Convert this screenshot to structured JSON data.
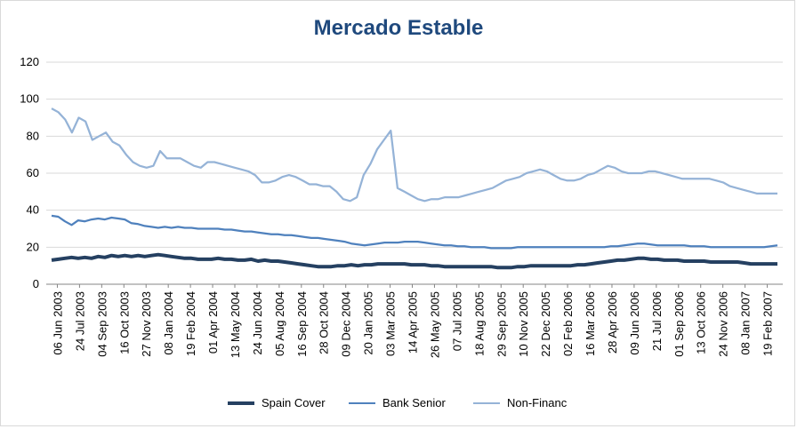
{
  "chart_data": {
    "type": "line",
    "title": "Mercado Estable",
    "xlabel": "",
    "ylabel": "",
    "ylim": [
      0,
      120
    ],
    "yticks": [
      0,
      20,
      40,
      60,
      80,
      100,
      120
    ],
    "grid": true,
    "legend": "bottom",
    "xtick_labels": [
      "06 Jun 2003",
      "24 Jul 2003",
      "04 Sep 2003",
      "16 Oct 2003",
      "27 Nov 2003",
      "08 Jan 2004",
      "19 Feb 2004",
      "01 Apr 2004",
      "13 May 2004",
      "24 Jun 2004",
      "05 Aug 2004",
      "16 Sep 2004",
      "28 Oct 2004",
      "09 Dec 2004",
      "20 Jan 2005",
      "03 Mar 2005",
      "14 Apr 2005",
      "26 May 2005",
      "07 Jul 2005",
      "18 Aug 2005",
      "29 Sep 2005",
      "10 Nov 2005",
      "22 Dec 2005",
      "02 Feb 2006",
      "16 Mar 2006",
      "28 Apr 2006",
      "09 Jun 2006",
      "21 Jul 2006",
      "01 Sep 2006",
      "13 Oct 2006",
      "24 Nov 2006",
      "08 Jan 2007",
      "19 Feb 2007"
    ],
    "series": [
      {
        "name": "Spain Cover",
        "color": "#254061",
        "values": [
          13,
          13.5,
          14,
          14.5,
          14,
          14.5,
          14,
          15,
          14.5,
          15.5,
          15,
          15.5,
          15,
          15.5,
          15,
          15.5,
          16,
          15.5,
          15,
          14.5,
          14,
          14,
          13.5,
          13.5,
          13.5,
          14,
          13.5,
          13.5,
          13,
          13,
          13.5,
          12.5,
          13,
          12.5,
          12.5,
          12,
          11.5,
          11,
          10.5,
          10,
          9.5,
          9.5,
          9.5,
          10,
          10,
          10.5,
          10,
          10.5,
          10.5,
          11,
          11,
          11,
          11,
          11,
          10.5,
          10.5,
          10.5,
          10,
          10,
          9.5,
          9.5,
          9.5,
          9.5,
          9.5,
          9.5,
          9.5,
          9.5,
          9,
          9,
          9,
          9.5,
          9.5,
          10,
          10,
          10,
          10,
          10,
          10,
          10,
          10.5,
          10.5,
          11,
          11.5,
          12,
          12.5,
          13,
          13,
          13.5,
          14,
          14,
          13.5,
          13.5,
          13,
          13,
          13,
          12.5,
          12.5,
          12.5,
          12.5,
          12,
          12,
          12,
          12,
          12,
          11.5,
          11,
          11,
          11,
          11,
          11
        ]
      },
      {
        "name": "Bank Senior",
        "color": "#4f81bd",
        "values": [
          37,
          36.5,
          34,
          32,
          34.5,
          34,
          35,
          35.5,
          35,
          36,
          35.5,
          35,
          33,
          32.5,
          31.5,
          31,
          30.5,
          31,
          30.5,
          31,
          30.5,
          30.5,
          30,
          30,
          30,
          30,
          29.5,
          29.5,
          29,
          28.5,
          28.5,
          28,
          27.5,
          27,
          27,
          26.5,
          26.5,
          26,
          25.5,
          25,
          25,
          24.5,
          24,
          23.5,
          23,
          22,
          21.5,
          21,
          21.5,
          22,
          22.5,
          22.5,
          22.5,
          23,
          23,
          23,
          22.5,
          22,
          21.5,
          21,
          21,
          20.5,
          20.5,
          20,
          20,
          20,
          19.5,
          19.5,
          19.5,
          19.5,
          20,
          20,
          20,
          20,
          20,
          20,
          20,
          20,
          20,
          20,
          20,
          20,
          20,
          20,
          20.5,
          20.5,
          21,
          21.5,
          22,
          22,
          21.5,
          21,
          21,
          21,
          21,
          21,
          20.5,
          20.5,
          20.5,
          20,
          20,
          20,
          20,
          20,
          20,
          20,
          20,
          20,
          20.5,
          21
        ]
      },
      {
        "name": "Non-Financ",
        "color": "#95b3d7",
        "values": [
          95,
          93,
          89,
          82,
          90,
          88,
          78,
          80,
          82,
          77,
          75,
          70,
          66,
          64,
          63,
          64,
          72,
          68,
          68,
          68,
          66,
          64,
          63,
          66,
          66,
          65,
          64,
          63,
          62,
          61,
          59,
          55,
          55,
          56,
          58,
          59,
          58,
          56,
          54,
          54,
          53,
          53,
          50,
          46,
          45,
          47,
          59,
          65,
          73,
          78,
          83,
          52,
          50,
          48,
          46,
          45,
          46,
          46,
          47,
          47,
          47,
          48,
          49,
          50,
          51,
          52,
          54,
          56,
          57,
          58,
          60,
          61,
          62,
          61,
          59,
          57,
          56,
          56,
          57,
          59,
          60,
          62,
          64,
          63,
          61,
          60,
          60,
          60,
          61,
          61,
          60,
          59,
          58,
          57,
          57,
          57,
          57,
          57,
          56,
          55,
          53,
          52,
          51,
          50,
          49,
          49,
          49,
          49
        ]
      }
    ]
  }
}
